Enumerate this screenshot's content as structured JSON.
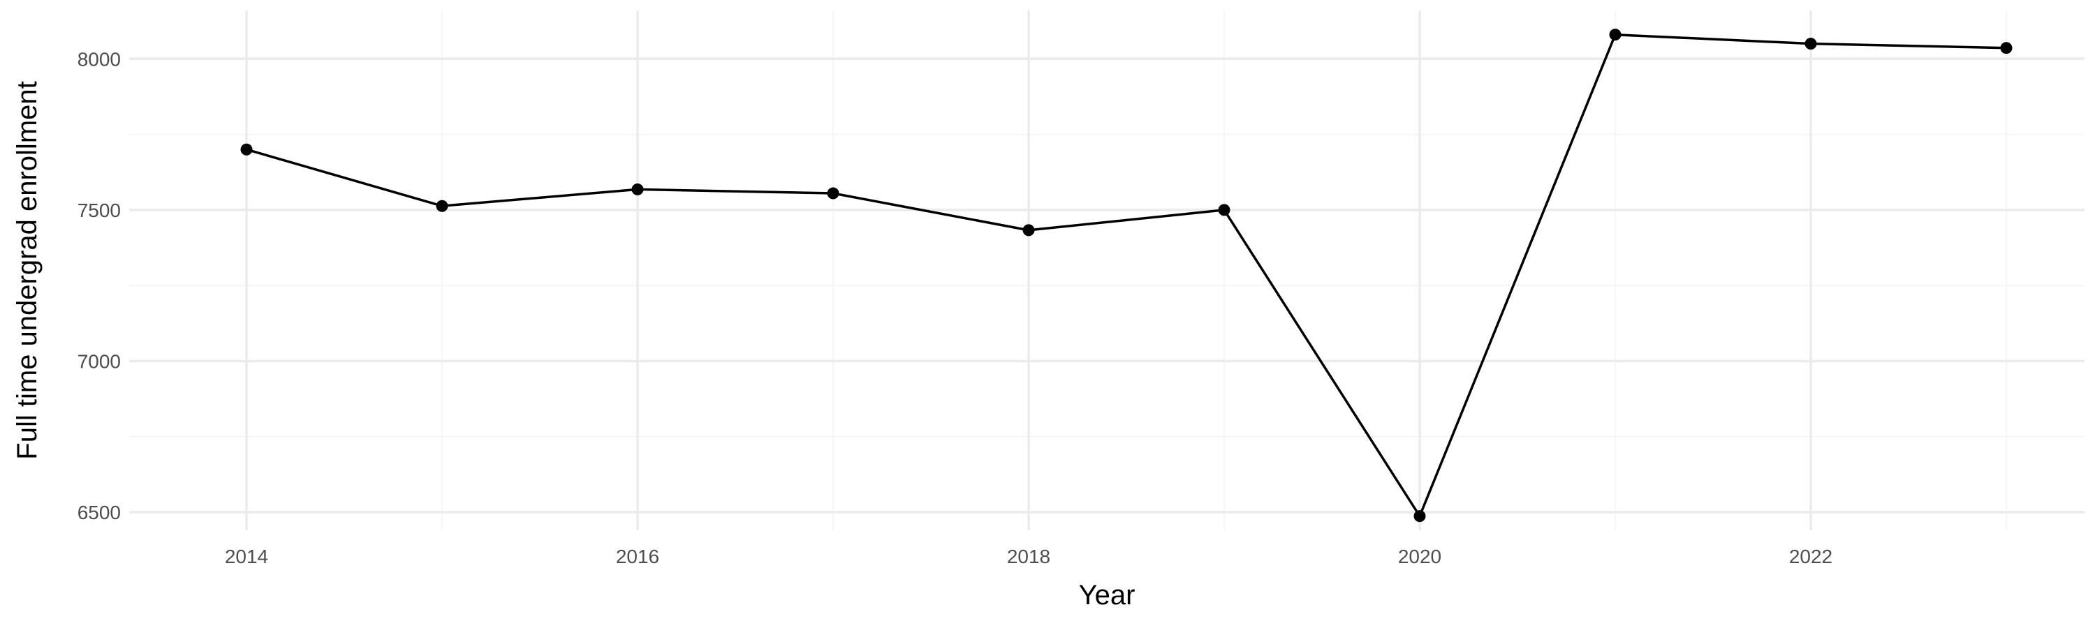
{
  "chart_data": {
    "type": "line",
    "title": "",
    "xlabel": "Year",
    "ylabel": "Full time undergrad enrollment",
    "x": [
      2014,
      2015,
      2016,
      2017,
      2018,
      2019,
      2020,
      2021,
      2022,
      2023
    ],
    "series": [
      {
        "values": [
          7700,
          7513,
          7568,
          7555,
          7433,
          7500,
          6487,
          8080,
          8050,
          8036
        ]
      }
    ],
    "xlim": [
      2013.4,
      2023.4
    ],
    "ylim": [
      6440,
      8160
    ],
    "x_ticks": [
      2014,
      2016,
      2018,
      2020,
      2022
    ],
    "x_tick_labels": [
      "2014",
      "2016",
      "2018",
      "2020",
      "2022"
    ],
    "x_minor_ticks": [
      2015,
      2017,
      2019,
      2021,
      2023
    ],
    "y_ticks": [
      6500,
      7000,
      7500,
      8000
    ],
    "y_tick_labels": [
      "6500",
      "7000",
      "7500",
      "8000"
    ],
    "y_minor_ticks": [
      6750,
      7250,
      7750
    ],
    "grid": true,
    "legend": "none",
    "colors": {
      "line": "#000000",
      "points": "#000000",
      "grid_major": "#ebebeb",
      "grid_minor": "#f5f5f5",
      "tick_text": "#4d4d4d",
      "axis_title": "#000000"
    }
  }
}
